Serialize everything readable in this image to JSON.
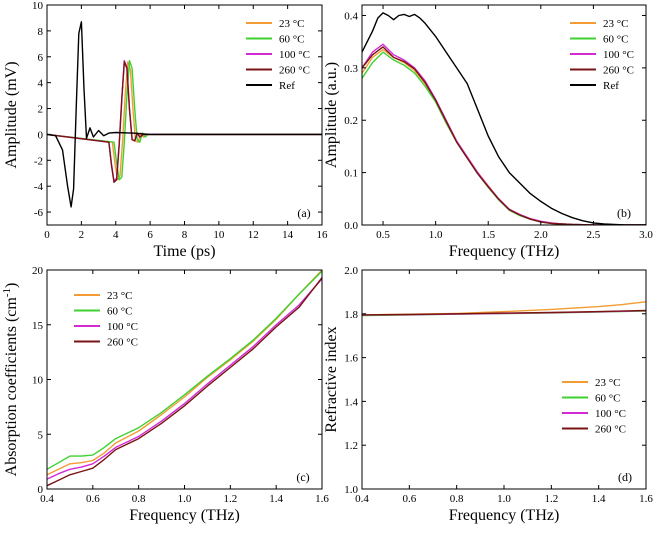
{
  "figure": {
    "series_colors": {
      "23 °C": "#f39c34",
      "60 °C": "#3fd130",
      "100 °C": "#d42ad6",
      "260 °C": "#7a1414",
      "Ref": "#000000"
    }
  },
  "chart_data": [
    {
      "panel": "(a)",
      "type": "line",
      "xlabel": "Time (ps)",
      "ylabel": "Amplitude (mV)",
      "xlim": [
        0,
        16
      ],
      "ylim": [
        -7,
        10
      ],
      "xticks": [
        0,
        2,
        4,
        6,
        8,
        10,
        12,
        14,
        16
      ],
      "yticks": [
        -6,
        -4,
        -2,
        0,
        2,
        4,
        6,
        8,
        10
      ],
      "legend": [
        "23 °C",
        "60 °C",
        "100 °C",
        "260 °C",
        "Ref"
      ],
      "legend_position": "top-right",
      "series": [
        {
          "name": "23 °C",
          "x": [
            0,
            3.8,
            3.95,
            4.1,
            4.25,
            4.4,
            4.55,
            4.7,
            4.85,
            5.0,
            5.15,
            5.3,
            5.45,
            5.6,
            5.8,
            6.2,
            8,
            10,
            12,
            14,
            16
          ],
          "y": [
            0,
            -0.6,
            -2.2,
            -3.5,
            -3.2,
            -0.5,
            3,
            5.6,
            5.0,
            2,
            -0.5,
            -0.6,
            0.1,
            -0.2,
            0,
            0,
            0,
            0,
            0,
            0,
            0
          ]
        },
        {
          "name": "60 °C",
          "x": [
            0,
            3.9,
            4.05,
            4.2,
            4.35,
            4.5,
            4.65,
            4.8,
            4.95,
            5.1,
            5.25,
            5.4,
            5.55,
            5.7,
            5.9,
            6.3,
            8,
            10,
            12,
            14,
            16
          ],
          "y": [
            0,
            -0.6,
            -2.2,
            -3.5,
            -3.3,
            -0.6,
            3,
            5.7,
            5.1,
            2,
            -0.4,
            -0.6,
            0.1,
            -0.2,
            0,
            0,
            0,
            0,
            0,
            0,
            0
          ]
        },
        {
          "name": "100 °C",
          "x": [
            0,
            3.6,
            3.75,
            3.9,
            4.05,
            4.2,
            4.35,
            4.5,
            4.65,
            4.8,
            4.95,
            5.1,
            5.25,
            5.4,
            5.6,
            6.0,
            8,
            10,
            12,
            14,
            16
          ],
          "y": [
            0,
            -0.6,
            -2.3,
            -3.6,
            -3.4,
            -0.7,
            2.8,
            5.7,
            5.2,
            2,
            -0.4,
            -0.5,
            0.1,
            -0.2,
            0,
            0,
            0,
            0,
            0,
            0,
            0
          ]
        },
        {
          "name": "260 °C",
          "x": [
            0,
            3.6,
            3.75,
            3.9,
            4.05,
            4.2,
            4.35,
            4.5,
            4.65,
            4.8,
            4.95,
            5.1,
            5.25,
            5.4,
            5.6,
            6.0,
            8,
            10,
            12,
            14,
            16
          ],
          "y": [
            0,
            -0.6,
            -2.4,
            -3.7,
            -3.5,
            -0.8,
            2.7,
            5.6,
            5.1,
            1.9,
            -0.4,
            -0.5,
            0.1,
            -0.2,
            0,
            0,
            0,
            0,
            0,
            0,
            0
          ]
        },
        {
          "name": "Ref",
          "x": [
            0,
            0.5,
            0.9,
            1.2,
            1.4,
            1.55,
            1.7,
            1.85,
            2.0,
            2.15,
            2.3,
            2.5,
            2.7,
            3.0,
            3.3,
            3.6,
            4.0,
            5,
            6,
            8,
            10,
            12,
            14,
            16
          ],
          "y": [
            0,
            -0.1,
            -1.2,
            -4.0,
            -5.6,
            -4.2,
            2.0,
            7.8,
            8.7,
            3.5,
            -0.3,
            0.5,
            -0.2,
            0.3,
            -0.1,
            0.1,
            0.15,
            0.1,
            0,
            0,
            0,
            0,
            0,
            0
          ]
        }
      ]
    },
    {
      "panel": "(b)",
      "type": "line",
      "xlabel": "Frequency (THz)",
      "ylabel": "Amplitude (a.u.)",
      "xlim": [
        0.3,
        3.0
      ],
      "ylim": [
        0,
        0.42
      ],
      "xticks": [
        0.5,
        1.0,
        1.5,
        2.0,
        2.5,
        3.0
      ],
      "yticks": [
        0.0,
        0.1,
        0.2,
        0.3,
        0.4
      ],
      "legend": [
        "23 °C",
        "60 °C",
        "100 °C",
        "260 °C",
        "Ref"
      ],
      "legend_position": "top-right",
      "series": [
        {
          "name": "23 °C",
          "x": [
            0.3,
            0.4,
            0.5,
            0.6,
            0.7,
            0.8,
            0.9,
            1.0,
            1.1,
            1.2,
            1.3,
            1.4,
            1.5,
            1.6,
            1.7,
            1.8,
            1.9,
            2.0,
            2.1,
            2.2,
            2.3,
            2.5,
            2.8,
            3.0
          ],
          "y": [
            0.29,
            0.32,
            0.335,
            0.32,
            0.31,
            0.295,
            0.27,
            0.24,
            0.2,
            0.16,
            0.13,
            0.1,
            0.075,
            0.05,
            0.03,
            0.02,
            0.012,
            0.007,
            0.004,
            0.002,
            0.001,
            0,
            0,
            0
          ]
        },
        {
          "name": "60 °C",
          "x": [
            0.3,
            0.4,
            0.5,
            0.6,
            0.7,
            0.8,
            0.9,
            1.0,
            1.1,
            1.2,
            1.3,
            1.4,
            1.5,
            1.6,
            1.7,
            1.8,
            1.9,
            2.0,
            2.1,
            2.2,
            2.3,
            2.5,
            2.8,
            3.0
          ],
          "y": [
            0.28,
            0.31,
            0.33,
            0.315,
            0.305,
            0.29,
            0.265,
            0.235,
            0.195,
            0.158,
            0.128,
            0.098,
            0.072,
            0.048,
            0.028,
            0.018,
            0.011,
            0.006,
            0.003,
            0.002,
            0.001,
            0,
            0,
            0
          ]
        },
        {
          "name": "100 °C",
          "x": [
            0.3,
            0.4,
            0.5,
            0.6,
            0.7,
            0.8,
            0.9,
            1.0,
            1.1,
            1.2,
            1.3,
            1.4,
            1.5,
            1.6,
            1.7,
            1.8,
            1.9,
            2.0,
            2.1,
            2.2,
            2.3,
            2.5,
            2.8,
            3.0
          ],
          "y": [
            0.3,
            0.33,
            0.345,
            0.325,
            0.315,
            0.3,
            0.275,
            0.24,
            0.2,
            0.16,
            0.13,
            0.1,
            0.074,
            0.05,
            0.03,
            0.02,
            0.012,
            0.007,
            0.004,
            0.002,
            0.001,
            0,
            0,
            0
          ]
        },
        {
          "name": "260 °C",
          "x": [
            0.3,
            0.4,
            0.5,
            0.6,
            0.7,
            0.8,
            0.9,
            1.0,
            1.1,
            1.2,
            1.3,
            1.4,
            1.5,
            1.6,
            1.7,
            1.8,
            1.9,
            2.0,
            2.1,
            2.2,
            2.3,
            2.5,
            2.8,
            3.0
          ],
          "y": [
            0.3,
            0.325,
            0.34,
            0.32,
            0.312,
            0.298,
            0.272,
            0.238,
            0.198,
            0.158,
            0.128,
            0.098,
            0.073,
            0.049,
            0.029,
            0.019,
            0.011,
            0.006,
            0.003,
            0.002,
            0.001,
            0,
            0,
            0
          ]
        },
        {
          "name": "Ref",
          "x": [
            0.3,
            0.4,
            0.45,
            0.5,
            0.55,
            0.6,
            0.65,
            0.7,
            0.75,
            0.8,
            0.85,
            0.9,
            1.0,
            1.1,
            1.2,
            1.3,
            1.4,
            1.5,
            1.6,
            1.7,
            1.8,
            1.9,
            2.0,
            2.1,
            2.2,
            2.3,
            2.4,
            2.5,
            2.6,
            2.7,
            2.8,
            3.0
          ],
          "y": [
            0.33,
            0.37,
            0.395,
            0.405,
            0.4,
            0.392,
            0.4,
            0.402,
            0.398,
            0.402,
            0.395,
            0.385,
            0.36,
            0.33,
            0.3,
            0.27,
            0.22,
            0.17,
            0.13,
            0.1,
            0.08,
            0.06,
            0.045,
            0.032,
            0.022,
            0.014,
            0.008,
            0.004,
            0.002,
            0.001,
            0,
            0
          ]
        }
      ]
    },
    {
      "panel": "(c)",
      "type": "line",
      "xlabel": "Frequency (THz)",
      "ylabel": "Absorption coefficients (cm",
      "ylabel_superscript": "-1",
      "ylabel_suffix": ")",
      "xlim": [
        0.4,
        1.6
      ],
      "ylim": [
        0,
        20
      ],
      "xticks": [
        0.4,
        0.6,
        0.8,
        1.0,
        1.2,
        1.4,
        1.6
      ],
      "yticks": [
        0,
        5,
        10,
        15,
        20
      ],
      "legend": [
        "23 °C",
        "60 °C",
        "100 °C",
        "260 °C"
      ],
      "legend_position": "top-left",
      "series": [
        {
          "name": "23 °C",
          "x": [
            0.4,
            0.45,
            0.5,
            0.55,
            0.6,
            0.65,
            0.7,
            0.8,
            0.9,
            1.0,
            1.1,
            1.2,
            1.3,
            1.4,
            1.5,
            1.6
          ],
          "y": [
            1.3,
            1.8,
            2.3,
            2.4,
            2.6,
            3.3,
            4.2,
            5.3,
            6.8,
            8.4,
            10.2,
            11.8,
            13.5,
            15.5,
            17.8,
            20
          ]
        },
        {
          "name": "60 °C",
          "x": [
            0.4,
            0.45,
            0.5,
            0.55,
            0.6,
            0.65,
            0.7,
            0.8,
            0.9,
            1.0,
            1.1,
            1.2,
            1.3,
            1.4,
            1.5,
            1.6
          ],
          "y": [
            1.8,
            2.4,
            3.0,
            3.0,
            3.1,
            3.8,
            4.6,
            5.6,
            7.0,
            8.6,
            10.3,
            11.9,
            13.6,
            15.6,
            17.8,
            19.9
          ]
        },
        {
          "name": "100 °C",
          "x": [
            0.4,
            0.45,
            0.5,
            0.55,
            0.6,
            0.65,
            0.7,
            0.8,
            0.9,
            1.0,
            1.1,
            1.2,
            1.3,
            1.4,
            1.5,
            1.6
          ],
          "y": [
            0.9,
            1.4,
            1.8,
            2.0,
            2.3,
            3.0,
            3.8,
            4.8,
            6.2,
            7.8,
            9.6,
            11.3,
            13.0,
            15.0,
            16.8,
            19.2
          ]
        },
        {
          "name": "260 °C",
          "x": [
            0.4,
            0.45,
            0.5,
            0.55,
            0.6,
            0.65,
            0.7,
            0.8,
            0.9,
            1.0,
            1.1,
            1.2,
            1.3,
            1.4,
            1.5,
            1.6
          ],
          "y": [
            0.3,
            0.8,
            1.3,
            1.6,
            1.9,
            2.7,
            3.6,
            4.6,
            6.0,
            7.6,
            9.4,
            11.1,
            12.8,
            14.8,
            16.6,
            19.3
          ]
        }
      ]
    },
    {
      "panel": "(d)",
      "type": "line",
      "xlabel": "Frequency (THz)",
      "ylabel": "Refractive index",
      "xlim": [
        0.4,
        1.6
      ],
      "ylim": [
        1.0,
        2.0
      ],
      "xticks": [
        0.4,
        0.6,
        0.8,
        1.0,
        1.2,
        1.4,
        1.6
      ],
      "yticks": [
        1.0,
        1.2,
        1.4,
        1.6,
        1.8,
        2.0
      ],
      "legend": [
        "23 °C",
        "60 °C",
        "100 °C",
        "260 °C"
      ],
      "legend_position": "bottom-right",
      "series": [
        {
          "name": "23 °C",
          "x": [
            0.4,
            0.6,
            0.8,
            1.0,
            1.2,
            1.4,
            1.5,
            1.6
          ],
          "y": [
            1.795,
            1.798,
            1.802,
            1.81,
            1.82,
            1.833,
            1.842,
            1.855
          ]
        },
        {
          "name": "60 °C",
          "x": [
            0.4,
            0.6,
            0.8,
            1.0,
            1.2,
            1.4,
            1.6
          ],
          "y": [
            1.792,
            1.795,
            1.798,
            1.801,
            1.804,
            1.808,
            1.813
          ]
        },
        {
          "name": "100 °C",
          "x": [
            0.4,
            0.6,
            0.8,
            1.0,
            1.2,
            1.4,
            1.6
          ],
          "y": [
            1.794,
            1.796,
            1.799,
            1.802,
            1.805,
            1.809,
            1.814
          ]
        },
        {
          "name": "260 °C",
          "x": [
            0.4,
            0.6,
            0.8,
            1.0,
            1.2,
            1.4,
            1.6
          ],
          "y": [
            1.795,
            1.797,
            1.8,
            1.803,
            1.806,
            1.81,
            1.815
          ]
        }
      ]
    }
  ]
}
